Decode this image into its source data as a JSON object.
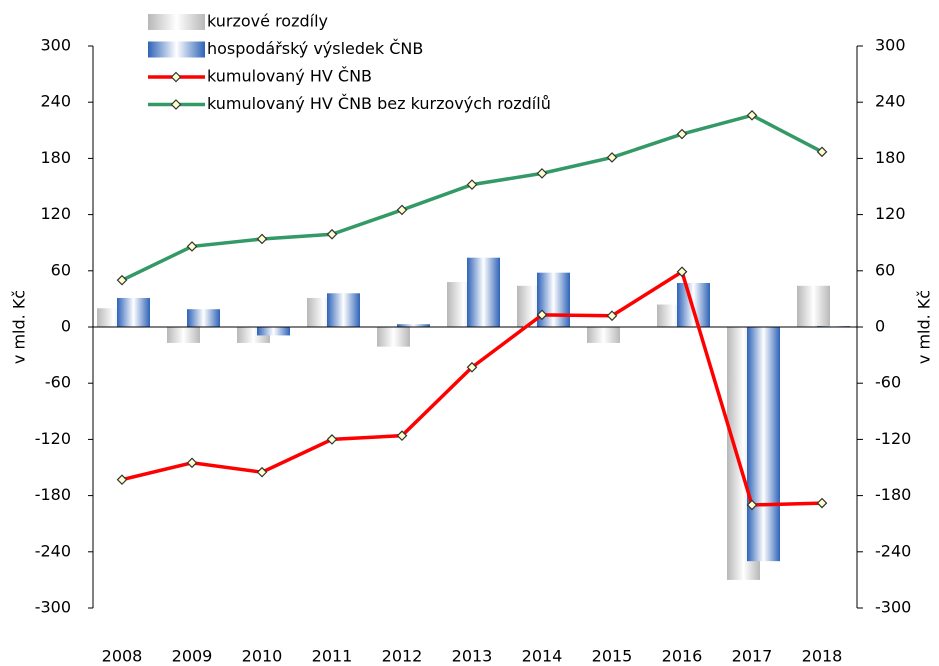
{
  "chart_data": {
    "type": "bar",
    "categories": [
      "2008",
      "2009",
      "2010",
      "2011",
      "2012",
      "2013",
      "2014",
      "2015",
      "2016",
      "2017",
      "2018"
    ],
    "series": [
      {
        "name": "kurzové rozdíly",
        "type": "bar",
        "color": "#b8b8b8",
        "values": [
          20,
          -17,
          -17,
          31,
          -21,
          48,
          44,
          -17,
          24,
          -270,
          44
        ]
      },
      {
        "name": "hospodářský výsledek ČNB",
        "type": "bar",
        "color": "#2e63b8",
        "values": [
          31,
          19,
          -9,
          36,
          3,
          74,
          58,
          0,
          47,
          -250,
          1
        ]
      },
      {
        "name": "kumulovaný HV ČNB",
        "type": "line",
        "color": "#ff0000",
        "values": [
          -163,
          -145,
          -155,
          -120,
          -116,
          -43,
          13,
          12,
          59,
          -190,
          -188
        ]
      },
      {
        "name": "kumulovaný HV ČNB bez kurzových rozdílů",
        "type": "line",
        "color": "#339966",
        "values": [
          50,
          86,
          94,
          99,
          125,
          152,
          164,
          181,
          206,
          226,
          187
        ]
      }
    ],
    "ylabel": "v mld. Kč",
    "y2label": "v mld. Kč",
    "ylim": [
      -300,
      300
    ],
    "yticks": [
      -300,
      -240,
      -180,
      -120,
      -60,
      0,
      60,
      120,
      180,
      240,
      300
    ],
    "y2lim": [
      -300,
      300
    ],
    "y2ticks": [
      -300,
      -240,
      -180,
      -120,
      -60,
      0,
      60,
      120,
      180,
      240,
      300
    ],
    "legend": "top-left"
  }
}
